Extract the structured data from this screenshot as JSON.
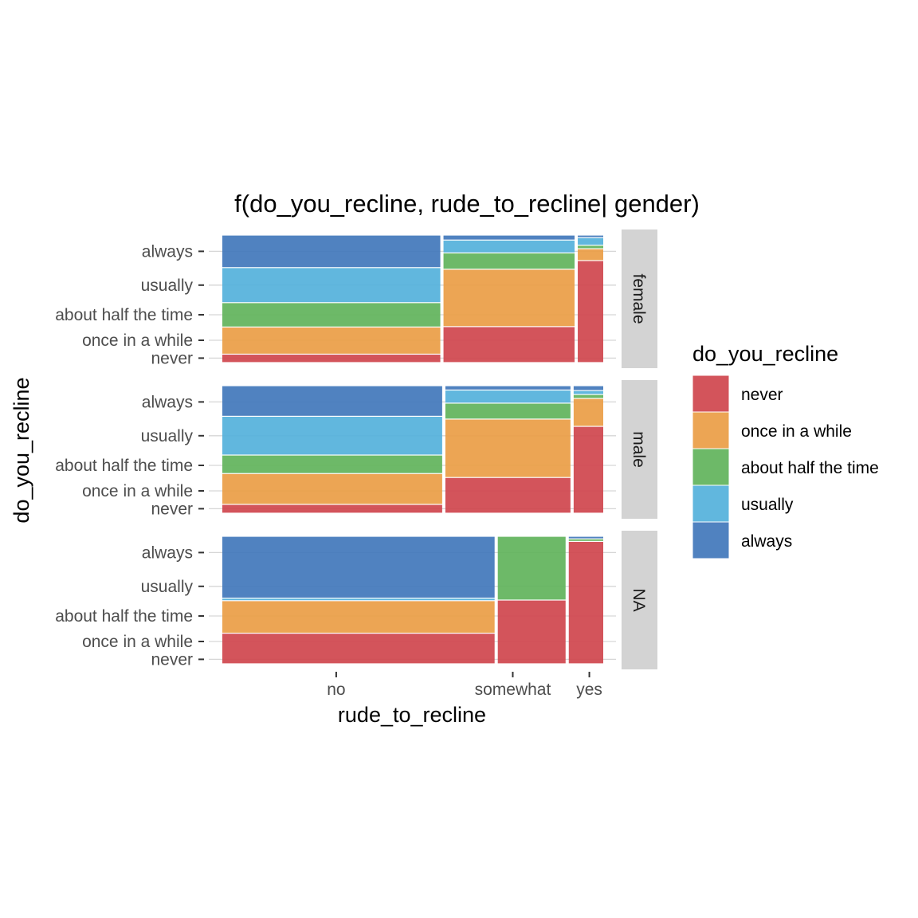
{
  "chart_data": {
    "type": "mosaic",
    "title": "f(do_you_recline, rude_to_recline| gender)",
    "xlabel": "rude_to_recline",
    "ylabel": "do_you_recline",
    "x_tick_labels": [
      "no",
      "somewhat",
      "yes"
    ],
    "y_tick_labels": [
      "never",
      "once in a while",
      "about half the time",
      "usually",
      "always"
    ],
    "legend": {
      "title": "do_you_recline",
      "placement": "right",
      "items": [
        {
          "label": "never",
          "color": "#d0474f"
        },
        {
          "label": "once in a while",
          "color": "#eb9e47"
        },
        {
          "label": "about half the time",
          "color": "#62b45d"
        },
        {
          "label": "usually",
          "color": "#55b1db"
        },
        {
          "label": "always",
          "color": "#4378bb"
        }
      ]
    },
    "facets": [
      {
        "label": "female",
        "x_fractions": [
          0.582,
          0.35,
          0.068
        ],
        "y_fractions": {
          "no": [
            0.066,
            0.213,
            0.191,
            0.275,
            0.255
          ],
          "somewhat": [
            0.282,
            0.45,
            0.128,
            0.101,
            0.039
          ],
          "yes": [
            0.8,
            0.093,
            0.027,
            0.06,
            0.02
          ]
        }
      },
      {
        "label": "male",
        "x_fractions": [
          0.587,
          0.334,
          0.079
        ],
        "y_fractions": {
          "no": [
            0.069,
            0.242,
            0.145,
            0.304,
            0.24
          ],
          "somewhat": [
            0.28,
            0.458,
            0.125,
            0.103,
            0.034
          ],
          "yes": [
            0.681,
            0.219,
            0.031,
            0.031,
            0.038
          ]
        }
      },
      {
        "label": "NA",
        "x_fractions": [
          0.727,
          0.181,
          0.092
        ],
        "y_fractions": {
          "no": [
            0.24,
            0.255,
            0.0,
            0.02,
            0.485
          ],
          "somewhat": [
            0.5,
            0.0,
            0.5,
            0.0,
            0.0
          ],
          "yes": [
            0.96,
            0.0,
            0.02,
            0.0,
            0.02
          ]
        }
      }
    ],
    "x_axis_marginals": [
      0.598,
      0.329,
      0.073
    ],
    "y_axis_marginals": [
      0.07,
      0.21,
      0.19,
      0.275,
      0.255
    ],
    "grid": true
  }
}
